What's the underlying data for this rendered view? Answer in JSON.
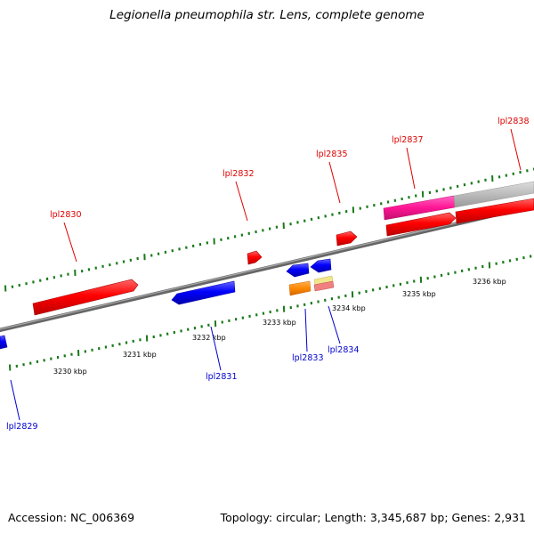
{
  "title": "Legionella pneumophila str. Lens, complete genome",
  "footer": {
    "accession": "Accession: NC_006369",
    "stats": "Topology: circular; Length: 3,345,687 bp; Genes: 2,931"
  },
  "scale_labels": [
    "3230 kbp",
    "3231 kbp",
    "3232 kbp",
    "3233 kbp",
    "3234 kbp",
    "3235 kbp",
    "3236 kbp"
  ],
  "gene_labels": {
    "forward": [
      "lpl2830",
      "lpl2832",
      "lpl2835",
      "lpl2837",
      "lpl2838"
    ],
    "reverse": [
      "lpl2829",
      "lpl2831",
      "lpl2833",
      "lpl2834"
    ]
  },
  "colors": {
    "forward_label": "#dd0000",
    "reverse_label": "#0000cc",
    "forward_gene": "#ff0000",
    "reverse_gene": "#0000ff",
    "backbone": "#888888",
    "tick": "#1a7a1a",
    "pink_feature": "#ff1493",
    "gray_feature": "#bbbbbb",
    "orange_feature": "#ff8800",
    "yellow_feature": "#f0e68c",
    "salmon_feature": "#f08080"
  }
}
